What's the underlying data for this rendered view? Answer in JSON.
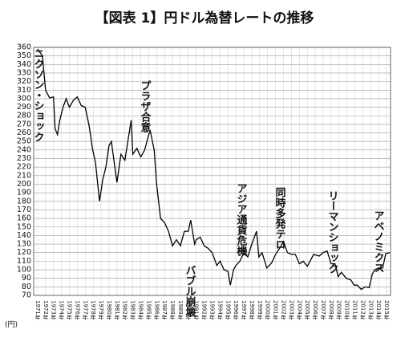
{
  "chart_data": {
    "type": "line",
    "title": "【図表 1】円ドル為替レートの推移",
    "ylabel": "(円)",
    "color": "#000000",
    "grid": true,
    "ylim": [
      70,
      360
    ],
    "yticks": [
      70,
      80,
      90,
      100,
      110,
      120,
      130,
      140,
      150,
      160,
      170,
      180,
      190,
      200,
      210,
      220,
      230,
      240,
      250,
      260,
      270,
      280,
      290,
      300,
      310,
      320,
      330,
      340,
      350,
      360
    ],
    "xlim": [
      1970.5,
      2015.5
    ],
    "xticks": [
      {
        "value": 1971,
        "label": "1971年"
      },
      {
        "value": 1972,
        "label": "1972年"
      },
      {
        "value": 1973,
        "label": "1973年"
      },
      {
        "value": 1974,
        "label": "1974年"
      },
      {
        "value": 1975,
        "label": "1975年"
      },
      {
        "value": 1976,
        "label": "1976年"
      },
      {
        "value": 1977,
        "label": "1977年"
      },
      {
        "value": 1978,
        "label": "1978年"
      },
      {
        "value": 1979,
        "label": "1979年"
      },
      {
        "value": 1980,
        "label": "1980年"
      },
      {
        "value": 1981,
        "label": "1981年"
      },
      {
        "value": 1982,
        "label": "1982年"
      },
      {
        "value": 1983,
        "label": "1983年"
      },
      {
        "value": 1984,
        "label": "1984年"
      },
      {
        "value": 1985,
        "label": "1985年"
      },
      {
        "value": 1986,
        "label": "1986年"
      },
      {
        "value": 1987,
        "label": "1987年"
      },
      {
        "value": 1988,
        "label": "1988年"
      },
      {
        "value": 1989,
        "label": "1989年"
      },
      {
        "value": 1990,
        "label": "1990年"
      },
      {
        "value": 1991,
        "label": "1991年"
      },
      {
        "value": 1992,
        "label": "1992年"
      },
      {
        "value": 1993,
        "label": "1993年"
      },
      {
        "value": 1994,
        "label": "1994年"
      },
      {
        "value": 1995,
        "label": "1995年"
      },
      {
        "value": 1996,
        "label": "1996年"
      },
      {
        "value": 1997,
        "label": "1997年"
      },
      {
        "value": 1998,
        "label": "1998年"
      },
      {
        "value": 1999,
        "label": "1999年"
      },
      {
        "value": 2000,
        "label": "2000年"
      },
      {
        "value": 2001,
        "label": "2001年"
      },
      {
        "value": 2002,
        "label": "2002年"
      },
      {
        "value": 2003,
        "label": "2003年"
      },
      {
        "value": 2004,
        "label": "2004年"
      },
      {
        "value": 2005,
        "label": "2005年"
      },
      {
        "value": 2006,
        "label": "2006年"
      },
      {
        "value": 2007,
        "label": "2007年"
      },
      {
        "value": 2008,
        "label": "2008年"
      },
      {
        "value": 2009,
        "label": "2009年"
      },
      {
        "value": 2010,
        "label": "2010年"
      },
      {
        "value": 2011,
        "label": "2011年"
      },
      {
        "value": 2012,
        "label": "2012年"
      },
      {
        "value": 2013,
        "label": "2013年"
      },
      {
        "value": 2014,
        "label": "2014年"
      },
      {
        "value": 2015,
        "label": "2015年"
      }
    ],
    "x": [
      1971.0,
      1971.6,
      1972.0,
      1972.5,
      1973.0,
      1973.2,
      1973.5,
      1973.8,
      1974.2,
      1974.6,
      1975.0,
      1975.5,
      1976.0,
      1976.5,
      1977.0,
      1977.5,
      1977.9,
      1978.3,
      1978.8,
      1979.2,
      1979.6,
      1980.0,
      1980.3,
      1980.8,
      1981.0,
      1981.5,
      1982.0,
      1982.8,
      1983.0,
      1983.5,
      1984.0,
      1984.5,
      1985.0,
      1985.2,
      1985.7,
      1986.0,
      1986.5,
      1987.0,
      1987.5,
      1988.0,
      1988.5,
      1989.0,
      1989.5,
      1990.0,
      1990.3,
      1990.8,
      1991.0,
      1991.5,
      1992.0,
      1992.5,
      1993.0,
      1993.6,
      1994.0,
      1994.5,
      1995.0,
      1995.3,
      1995.7,
      1996.0,
      1996.5,
      1997.0,
      1997.5,
      1998.0,
      1998.6,
      1998.9,
      1999.3,
      1999.9,
      2000.5,
      2001.0,
      2001.5,
      2002.0,
      2002.5,
      2003.0,
      2003.5,
      2004.0,
      2004.5,
      2005.0,
      2005.8,
      2006.5,
      2007.0,
      2007.5,
      2008.0,
      2008.5,
      2008.9,
      2009.3,
      2009.9,
      2010.5,
      2010.9,
      2011.3,
      2011.8,
      2012.3,
      2012.8,
      2013.2,
      2013.5,
      2014.0,
      2014.5,
      2014.9,
      2015.4
    ],
    "values": [
      358,
      350,
      310,
      301,
      302,
      265,
      258,
      275,
      290,
      300,
      290,
      298,
      302,
      292,
      290,
      268,
      242,
      225,
      180,
      205,
      220,
      245,
      250,
      215,
      202,
      235,
      228,
      275,
      235,
      242,
      232,
      240,
      258,
      262,
      240,
      200,
      160,
      155,
      145,
      128,
      135,
      128,
      145,
      145,
      158,
      130,
      135,
      138,
      128,
      125,
      120,
      105,
      110,
      100,
      98,
      82,
      100,
      105,
      110,
      120,
      115,
      130,
      145,
      115,
      120,
      102,
      108,
      118,
      125,
      133,
      120,
      118,
      118,
      107,
      110,
      104,
      118,
      116,
      120,
      122,
      107,
      107,
      92,
      97,
      90,
      88,
      82,
      82,
      77,
      80,
      79,
      95,
      100,
      102,
      102,
      119,
      120
    ],
    "annotations": [
      "ニクソン・ショック",
      "プラザ合意",
      "バブル崩壊",
      "アジア通貨危機",
      "同時多発テロ",
      "リーマンショック",
      "アベノミクス"
    ]
  }
}
